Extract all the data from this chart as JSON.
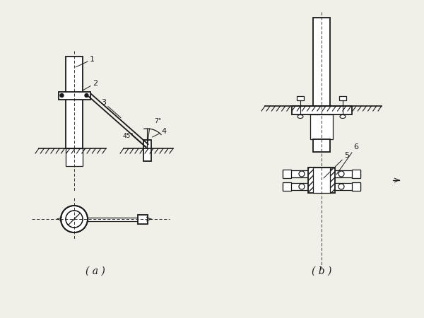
{
  "bg_color": "#f0efe8",
  "line_color": "#1a1a1a",
  "fig_width": 6.0,
  "fig_height": 4.5,
  "caption_a": "( a )",
  "caption_b": "( b )",
  "label1": "1",
  "label2": "2",
  "label3": "3",
  "label4": "4",
  "label5": "5",
  "label6": "6",
  "angle45": "45°",
  "angle7": "7°"
}
